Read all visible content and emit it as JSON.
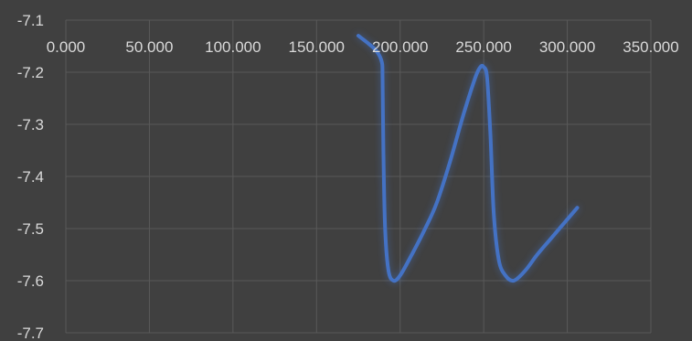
{
  "chart_data": {
    "type": "scatter",
    "title": "",
    "xlabel": "",
    "ylabel": "",
    "xlim": [
      0,
      350
    ],
    "ylim": [
      -7.7,
      -7.1
    ],
    "x_ticks": [
      "0.000",
      "50.000",
      "100.000",
      "150.000",
      "200.000",
      "250.000",
      "300.000",
      "350.000"
    ],
    "y_ticks": [
      "-7.1",
      "-7.2",
      "-7.3",
      "-7.4",
      "-7.5",
      "-7.6",
      "-7.7"
    ],
    "x_tick_values": [
      0,
      50,
      100,
      150,
      200,
      250,
      300,
      350
    ],
    "y_tick_values": [
      -7.1,
      -7.2,
      -7.3,
      -7.4,
      -7.5,
      -7.6,
      -7.7
    ],
    "grid": true,
    "legend": "none",
    "series": [
      {
        "color": "#4472c4",
        "glow": true,
        "smooth": true,
        "x": [
          175,
          181,
          186,
          189,
          189.5,
          190,
          191,
          193,
          196,
          200,
          207,
          215,
          222,
          230,
          238,
          245,
          248,
          250,
          252,
          254,
          256,
          259,
          263,
          268,
          275,
          282,
          290,
          298,
          306
        ],
        "y": [
          -7.13,
          -7.145,
          -7.16,
          -7.18,
          -7.21,
          -7.35,
          -7.5,
          -7.58,
          -7.6,
          -7.59,
          -7.55,
          -7.5,
          -7.45,
          -7.37,
          -7.28,
          -7.21,
          -7.19,
          -7.19,
          -7.21,
          -7.32,
          -7.47,
          -7.56,
          -7.59,
          -7.6,
          -7.58,
          -7.55,
          -7.52,
          -7.49,
          -7.46
        ]
      }
    ]
  }
}
